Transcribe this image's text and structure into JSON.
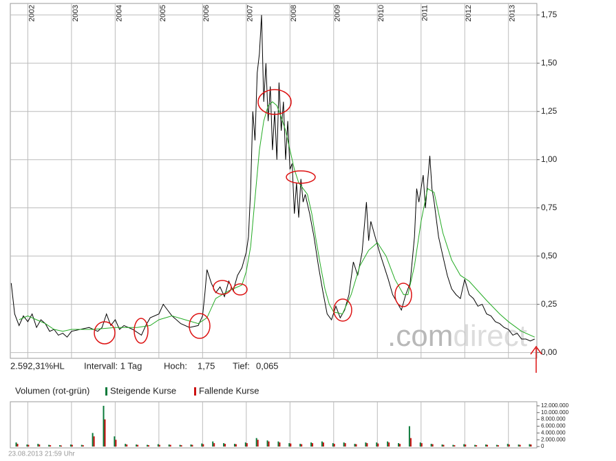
{
  "chart_data": [
    {
      "type": "line",
      "xlim": [
        2001.6,
        2013.65
      ],
      "xticks": [
        2002,
        2003,
        2004,
        2005,
        2006,
        2007,
        2008,
        2009,
        2010,
        2011,
        2012,
        2013
      ],
      "ylim": [
        -0.03,
        1.81
      ],
      "yticks": [
        {
          "value": 0,
          "label": "0,00"
        },
        {
          "value": 0.25,
          "label": "0,25"
        },
        {
          "value": 0.5,
          "label": "0,50"
        },
        {
          "value": 0.75,
          "label": "0,75"
        },
        {
          "value": 1,
          "label": "1,00"
        },
        {
          "value": 1.25,
          "label": "1,25"
        },
        {
          "value": 1.5,
          "label": "1,50"
        },
        {
          "value": 1.75,
          "label": "1,75"
        }
      ],
      "grid": true,
      "watermark": [
        ".com",
        "direct"
      ],
      "stats": {
        "change": "2.592,31%HL",
        "interval": "Intervall: 1 Tag",
        "high_label": "Hoch:",
        "high": "1,75",
        "low_label": "Tief:",
        "low": "0,065"
      },
      "series": [
        {
          "color": "#000000",
          "x": [
            2001.62,
            2001.7,
            2001.8,
            2001.9,
            2002.0,
            2002.1,
            2002.2,
            2002.3,
            2002.4,
            2002.5,
            2002.6,
            2002.7,
            2002.8,
            2002.9,
            2003.0,
            2003.2,
            2003.4,
            2003.6,
            2003.7,
            2003.8,
            2003.9,
            2004.0,
            2004.1,
            2004.2,
            2004.4,
            2004.6,
            2004.7,
            2004.8,
            2005.0,
            2005.1,
            2005.2,
            2005.3,
            2005.5,
            2005.7,
            2005.9,
            2006.0,
            2006.05,
            2006.1,
            2006.2,
            2006.3,
            2006.4,
            2006.5,
            2006.6,
            2006.7,
            2006.8,
            2006.9,
            2007.0,
            2007.05,
            2007.1,
            2007.15,
            2007.2,
            2007.25,
            2007.3,
            2007.35,
            2007.4,
            2007.45,
            2007.5,
            2007.55,
            2007.6,
            2007.65,
            2007.7,
            2007.75,
            2007.8,
            2007.85,
            2007.9,
            2007.95,
            2008.0,
            2008.05,
            2008.1,
            2008.15,
            2008.2,
            2008.25,
            2008.3,
            2008.35,
            2008.45,
            2008.55,
            2008.65,
            2008.75,
            2008.85,
            2008.95,
            2009.05,
            2009.15,
            2009.25,
            2009.35,
            2009.45,
            2009.55,
            2009.65,
            2009.75,
            2009.8,
            2009.85,
            2009.95,
            2010.05,
            2010.15,
            2010.25,
            2010.35,
            2010.45,
            2010.55,
            2010.65,
            2010.75,
            2010.85,
            2010.9,
            2010.95,
            2011.05,
            2011.1,
            2011.2,
            2011.25,
            2011.3,
            2011.4,
            2011.5,
            2011.6,
            2011.7,
            2011.8,
            2011.9,
            2012.0,
            2012.1,
            2012.2,
            2012.3,
            2012.4,
            2012.5,
            2012.6,
            2012.7,
            2012.8,
            2012.9,
            2013.0,
            2013.1,
            2013.2,
            2013.3,
            2013.4,
            2013.5,
            2013.6
          ],
          "values": [
            0.36,
            0.2,
            0.14,
            0.19,
            0.16,
            0.2,
            0.13,
            0.17,
            0.15,
            0.11,
            0.12,
            0.09,
            0.1,
            0.08,
            0.11,
            0.12,
            0.13,
            0.11,
            0.13,
            0.2,
            0.14,
            0.17,
            0.12,
            0.14,
            0.12,
            0.09,
            0.14,
            0.18,
            0.2,
            0.25,
            0.22,
            0.19,
            0.15,
            0.13,
            0.14,
            0.19,
            0.3,
            0.43,
            0.36,
            0.31,
            0.34,
            0.29,
            0.37,
            0.32,
            0.4,
            0.44,
            0.52,
            0.6,
            0.85,
            1.25,
            1.1,
            1.45,
            1.55,
            1.75,
            1.3,
            1.5,
            1.2,
            1.38,
            1.05,
            1.25,
            1.0,
            1.4,
            1.15,
            1.3,
            1.0,
            1.2,
            0.95,
            0.98,
            0.72,
            0.88,
            0.7,
            0.9,
            0.78,
            0.82,
            0.72,
            0.6,
            0.45,
            0.32,
            0.2,
            0.17,
            0.24,
            0.18,
            0.22,
            0.3,
            0.47,
            0.4,
            0.52,
            0.78,
            0.58,
            0.68,
            0.6,
            0.52,
            0.45,
            0.38,
            0.3,
            0.26,
            0.22,
            0.3,
            0.36,
            0.6,
            0.85,
            0.78,
            0.92,
            0.75,
            1.02,
            0.85,
            0.78,
            0.6,
            0.5,
            0.4,
            0.33,
            0.3,
            0.28,
            0.38,
            0.3,
            0.28,
            0.24,
            0.25,
            0.2,
            0.19,
            0.16,
            0.15,
            0.13,
            0.12,
            0.09,
            0.1,
            0.07,
            0.07,
            0.06,
            0.07
          ]
        },
        {
          "color": "#22aa22",
          "x": [
            2001.8,
            2002.0,
            2002.2,
            2002.4,
            2002.6,
            2002.8,
            2003.0,
            2003.5,
            2004.0,
            2004.5,
            2004.8,
            2005.0,
            2005.3,
            2005.6,
            2005.9,
            2006.1,
            2006.3,
            2006.6,
            2006.9,
            2007.0,
            2007.1,
            2007.2,
            2007.3,
            2007.4,
            2007.5,
            2007.6,
            2007.7,
            2007.8,
            2007.9,
            2008.0,
            2008.1,
            2008.2,
            2008.3,
            2008.4,
            2008.5,
            2008.6,
            2008.7,
            2008.8,
            2008.9,
            2009.0,
            2009.2,
            2009.4,
            2009.6,
            2009.8,
            2010.0,
            2010.2,
            2010.4,
            2010.6,
            2010.7,
            2010.85,
            2011.0,
            2011.15,
            2011.3,
            2011.5,
            2011.7,
            2011.9,
            2012.1,
            2012.3,
            2012.5,
            2012.8,
            2013.0,
            2013.3,
            2013.6
          ],
          "values": [
            0.17,
            0.19,
            0.17,
            0.15,
            0.12,
            0.11,
            0.12,
            0.12,
            0.13,
            0.13,
            0.14,
            0.17,
            0.19,
            0.17,
            0.15,
            0.18,
            0.28,
            0.32,
            0.35,
            0.42,
            0.55,
            0.8,
            1.05,
            1.2,
            1.28,
            1.3,
            1.28,
            1.22,
            1.15,
            1.05,
            0.95,
            0.88,
            0.85,
            0.82,
            0.72,
            0.58,
            0.45,
            0.33,
            0.25,
            0.21,
            0.2,
            0.3,
            0.45,
            0.53,
            0.57,
            0.5,
            0.38,
            0.3,
            0.3,
            0.45,
            0.68,
            0.85,
            0.83,
            0.62,
            0.48,
            0.4,
            0.37,
            0.32,
            0.27,
            0.2,
            0.16,
            0.11,
            0.08
          ]
        }
      ]
    },
    {
      "type": "bar",
      "title": "Volumen (rot-grün)",
      "footnote": "23.08.2013 21:59 Uhr",
      "xlim": [
        2001.6,
        2013.65
      ],
      "ylim": [
        -400000,
        13200000
      ],
      "yticks": [
        0,
        {
          "value": 2000000,
          "label": "2.000.000"
        },
        {
          "value": 4000000,
          "label": "4.000.000"
        },
        {
          "value": 6000000,
          "label": "6.000.000"
        },
        {
          "value": 8000000,
          "label": "8.000.000"
        },
        {
          "value": 10000000,
          "label": "10.000.000"
        },
        {
          "value": 12000000,
          "label": "12.000.000"
        }
      ],
      "x": [
        2001.75,
        2002.0,
        2002.25,
        2002.5,
        2002.75,
        2003.0,
        2003.25,
        2003.5,
        2003.75,
        2004.0,
        2004.25,
        2004.5,
        2004.75,
        2005.0,
        2005.25,
        2005.5,
        2005.75,
        2006.0,
        2006.25,
        2006.5,
        2006.75,
        2007.0,
        2007.25,
        2007.5,
        2007.75,
        2008.0,
        2008.25,
        2008.5,
        2008.75,
        2009.0,
        2009.25,
        2009.5,
        2009.75,
        2010.0,
        2010.25,
        2010.5,
        2010.75,
        2011.0,
        2011.25,
        2011.5,
        2011.75,
        2012.0,
        2012.25,
        2012.5,
        2012.75,
        2013.0,
        2013.25,
        2013.5
      ],
      "series": [
        {
          "name": "Steigende Kurse",
          "color": "#0a7a3a",
          "values": [
            1200000,
            600000,
            800000,
            500000,
            400000,
            600000,
            500000,
            4000000,
            12000000,
            3000000,
            800000,
            600000,
            500000,
            700000,
            600000,
            500000,
            600000,
            900000,
            1500000,
            1000000,
            800000,
            1200000,
            2500000,
            1800000,
            1500000,
            1000000,
            800000,
            1200000,
            1500000,
            1000000,
            1200000,
            800000,
            1200000,
            1200000,
            1500000,
            1000000,
            6000000,
            1200000,
            800000,
            600000,
            500000,
            700000,
            500000,
            600000,
            500000,
            800000,
            600000,
            700000
          ]
        },
        {
          "name": "Fallende Kurse",
          "color": "#cc1111",
          "values": [
            800000,
            500000,
            600000,
            400000,
            300000,
            500000,
            400000,
            3000000,
            8000000,
            2000000,
            600000,
            500000,
            400000,
            500000,
            500000,
            400000,
            500000,
            700000,
            1000000,
            800000,
            700000,
            1000000,
            2000000,
            1500000,
            1200000,
            900000,
            700000,
            1000000,
            1200000,
            800000,
            1000000,
            700000,
            1000000,
            900000,
            1200000,
            800000,
            2500000,
            1000000,
            700000,
            500000,
            400000,
            600000,
            400000,
            500000,
            400000,
            600000,
            500000,
            600000
          ]
        }
      ]
    }
  ]
}
